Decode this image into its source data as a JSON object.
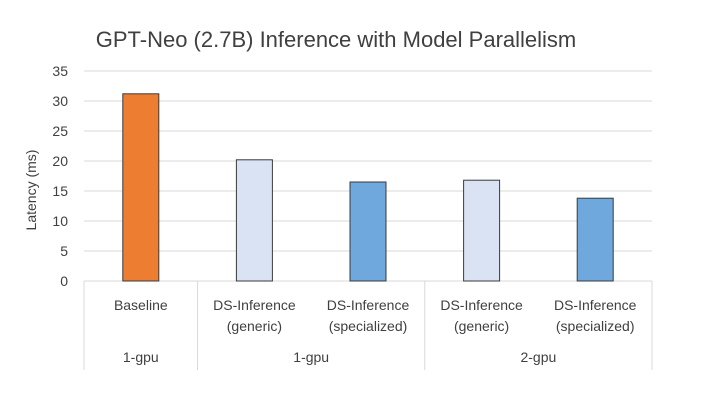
{
  "chart_data": {
    "type": "bar",
    "title": "GPT-Neo (2.7B) Inference with Model Parallelism",
    "ylabel": "Latency (ms)",
    "xlabel": "",
    "ylim": [
      0,
      35
    ],
    "yticks": [
      0,
      5,
      10,
      15,
      20,
      25,
      30,
      35
    ],
    "grid": true,
    "categories": [
      {
        "label_lines": [
          "Baseline"
        ],
        "value": 31.2,
        "color": "#ED7D31"
      },
      {
        "label_lines": [
          "DS-Inference",
          "(generic)"
        ],
        "value": 20.2,
        "color": "#DAE3F3"
      },
      {
        "label_lines": [
          "DS-Inference",
          "(specialized)"
        ],
        "value": 16.5,
        "color": "#6FA8DC"
      },
      {
        "label_lines": [
          "DS-Inference",
          "(generic)"
        ],
        "value": 16.8,
        "color": "#DAE3F3"
      },
      {
        "label_lines": [
          "DS-Inference",
          "(specialized)"
        ],
        "value": 13.8,
        "color": "#6FA8DC"
      }
    ],
    "groups": [
      {
        "label": "1-gpu",
        "span": [
          0,
          0
        ]
      },
      {
        "label": "1-gpu",
        "span": [
          1,
          2
        ]
      },
      {
        "label": "2-gpu",
        "span": [
          3,
          4
        ]
      }
    ]
  }
}
